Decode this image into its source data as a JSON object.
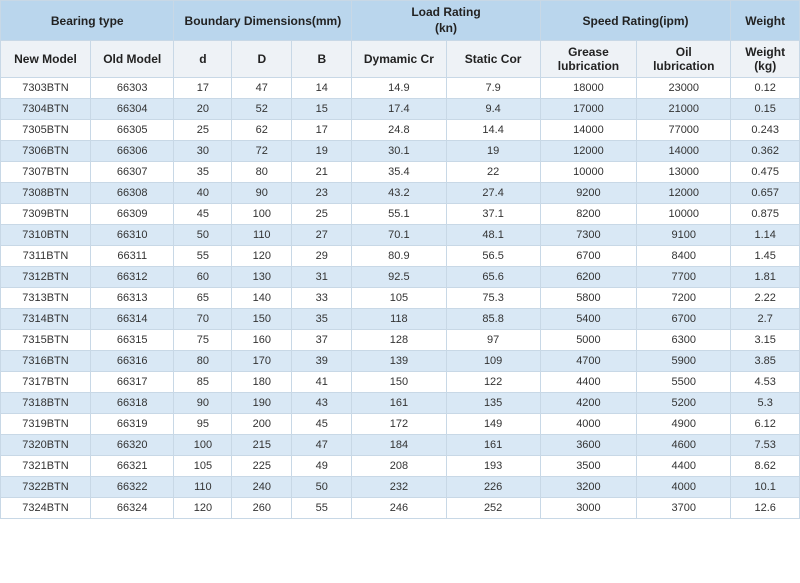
{
  "header": {
    "bearing_type": "Bearing type",
    "boundary_dim": "Boundary Dimensions(mm)",
    "load_rating_line1": "Load Rating",
    "load_rating_line2": "(kn)",
    "speed_rating": "Speed Rating(ipm)",
    "weight": "Weight",
    "new_model": "New Model",
    "old_model": "Old Model",
    "d": "d",
    "D_cap": "D",
    "B": "B",
    "dyn_cr": "Dymamic Cr",
    "stat_cor": "Static Cor",
    "grease_l1": "Grease",
    "grease_l2": "lubrication",
    "oil_l1": "Oil",
    "oil_l2": "lubrication",
    "weight_l1": "Weight",
    "weight_l2": "(kg)"
  },
  "colors": {
    "header_bg": "#bad6ed",
    "sub_bg": "#eef2f6",
    "row_alt": "#d9e8f5",
    "border": "#c8d8e6"
  },
  "col_widths": [
    "84",
    "78",
    "54",
    "56",
    "56",
    "88",
    "88",
    "90",
    "88",
    "64"
  ],
  "rows": [
    [
      "7303BTN",
      "66303",
      "17",
      "47",
      "14",
      "14.9",
      "7.9",
      "18000",
      "23000",
      "0.12"
    ],
    [
      "7304BTN",
      "66304",
      "20",
      "52",
      "15",
      "17.4",
      "9.4",
      "17000",
      "21000",
      "0.15"
    ],
    [
      "7305BTN",
      "66305",
      "25",
      "62",
      "17",
      "24.8",
      "14.4",
      "14000",
      "77000",
      "0.243"
    ],
    [
      "7306BTN",
      "66306",
      "30",
      "72",
      "19",
      "30.1",
      "19",
      "12000",
      "14000",
      "0.362"
    ],
    [
      "7307BTN",
      "66307",
      "35",
      "80",
      "21",
      "35.4",
      "22",
      "10000",
      "13000",
      "0.475"
    ],
    [
      "7308BTN",
      "66308",
      "40",
      "90",
      "23",
      "43.2",
      "27.4",
      "9200",
      "12000",
      "0.657"
    ],
    [
      "7309BTN",
      "66309",
      "45",
      "100",
      "25",
      "55.1",
      "37.1",
      "8200",
      "10000",
      "0.875"
    ],
    [
      "7310BTN",
      "66310",
      "50",
      "110",
      "27",
      "70.1",
      "48.1",
      "7300",
      "9100",
      "1.14"
    ],
    [
      "7311BTN",
      "66311",
      "55",
      "120",
      "29",
      "80.9",
      "56.5",
      "6700",
      "8400",
      "1.45"
    ],
    [
      "7312BTN",
      "66312",
      "60",
      "130",
      "31",
      "92.5",
      "65.6",
      "6200",
      "7700",
      "1.81"
    ],
    [
      "7313BTN",
      "66313",
      "65",
      "140",
      "33",
      "105",
      "75.3",
      "5800",
      "7200",
      "2.22"
    ],
    [
      "7314BTN",
      "66314",
      "70",
      "150",
      "35",
      "118",
      "85.8",
      "5400",
      "6700",
      "2.7"
    ],
    [
      "7315BTN",
      "66315",
      "75",
      "160",
      "37",
      "128",
      "97",
      "5000",
      "6300",
      "3.15"
    ],
    [
      "7316BTN",
      "66316",
      "80",
      "170",
      "39",
      "139",
      "109",
      "4700",
      "5900",
      "3.85"
    ],
    [
      "7317BTN",
      "66317",
      "85",
      "180",
      "41",
      "150",
      "122",
      "4400",
      "5500",
      "4.53"
    ],
    [
      "7318BTN",
      "66318",
      "90",
      "190",
      "43",
      "161",
      "135",
      "4200",
      "5200",
      "5.3"
    ],
    [
      "7319BTN",
      "66319",
      "95",
      "200",
      "45",
      "172",
      "149",
      "4000",
      "4900",
      "6.12"
    ],
    [
      "7320BTN",
      "66320",
      "100",
      "215",
      "47",
      "184",
      "161",
      "3600",
      "4600",
      "7.53"
    ],
    [
      "7321BTN",
      "66321",
      "105",
      "225",
      "49",
      "208",
      "193",
      "3500",
      "4400",
      "8.62"
    ],
    [
      "7322BTN",
      "66322",
      "110",
      "240",
      "50",
      "232",
      "226",
      "3200",
      "4000",
      "10.1"
    ],
    [
      "7324BTN",
      "66324",
      "120",
      "260",
      "55",
      "246",
      "252",
      "3000",
      "3700",
      "12.6"
    ]
  ]
}
